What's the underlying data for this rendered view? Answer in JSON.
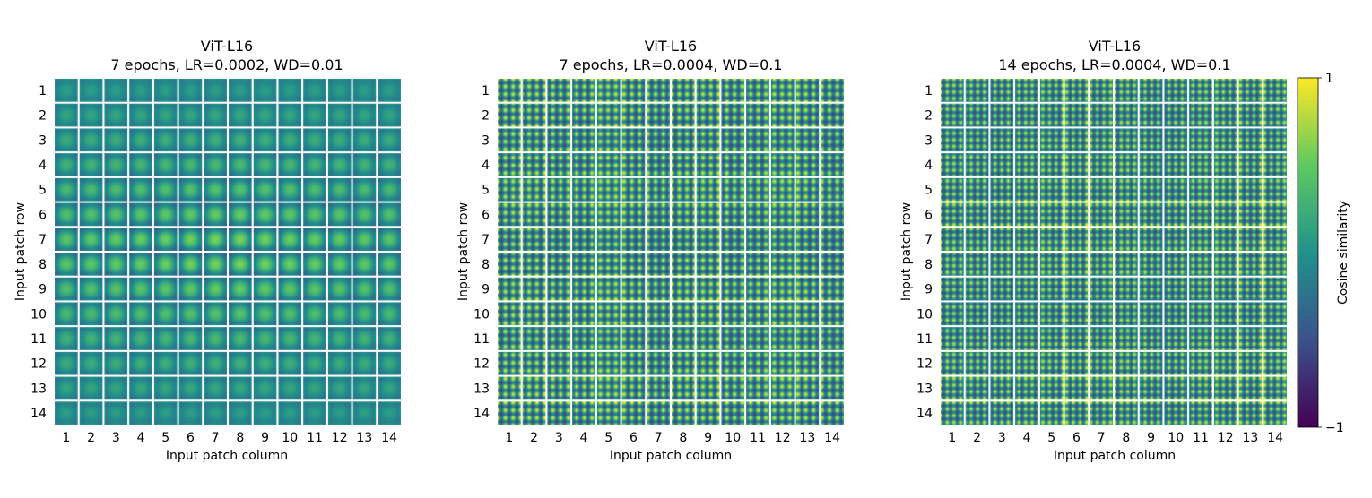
{
  "chart_data": [
    {
      "type": "heatmap",
      "title": "ViT-L16",
      "subtitle": "7 epochs, LR=0.0002, WD=0.01",
      "xlabel": "Input patch column",
      "ylabel": "Input patch row",
      "rows": [
        "1",
        "2",
        "3",
        "4",
        "5",
        "6",
        "7",
        "8",
        "9",
        "10",
        "11",
        "12",
        "13",
        "14"
      ],
      "columns": [
        "1",
        "2",
        "3",
        "4",
        "5",
        "6",
        "7",
        "8",
        "9",
        "10",
        "11",
        "12",
        "13",
        "14"
      ],
      "pattern": "smooth",
      "frequency": 0.8
    },
    {
      "type": "heatmap",
      "title": "ViT-L16",
      "subtitle": "7 epochs, LR=0.0004, WD=0.1",
      "xlabel": "Input patch column",
      "ylabel": "Input patch row",
      "rows": [
        "1",
        "2",
        "3",
        "4",
        "5",
        "6",
        "7",
        "8",
        "9",
        "10",
        "11",
        "12",
        "13",
        "14"
      ],
      "columns": [
        "1",
        "2",
        "3",
        "4",
        "5",
        "6",
        "7",
        "8",
        "9",
        "10",
        "11",
        "12",
        "13",
        "14"
      ],
      "pattern": "periodic",
      "frequency": 3.0
    },
    {
      "type": "heatmap",
      "title": "ViT-L16",
      "subtitle": "14 epochs, LR=0.0004, WD=0.1",
      "xlabel": "Input patch column",
      "ylabel": "Input patch row",
      "rows": [
        "1",
        "2",
        "3",
        "4",
        "5",
        "6",
        "7",
        "8",
        "9",
        "10",
        "11",
        "12",
        "13",
        "14"
      ],
      "columns": [
        "1",
        "2",
        "3",
        "4",
        "5",
        "6",
        "7",
        "8",
        "9",
        "10",
        "11",
        "12",
        "13",
        "14"
      ],
      "pattern": "periodic",
      "frequency": 3.5
    }
  ],
  "colorbar": {
    "label": "Cosine similarity",
    "min": -1,
    "max": 1,
    "ticks": [
      "1",
      "−1"
    ],
    "colormap": "viridis",
    "colors": [
      "#440154",
      "#3b528b",
      "#21918c",
      "#5ec962",
      "#fde725"
    ]
  }
}
